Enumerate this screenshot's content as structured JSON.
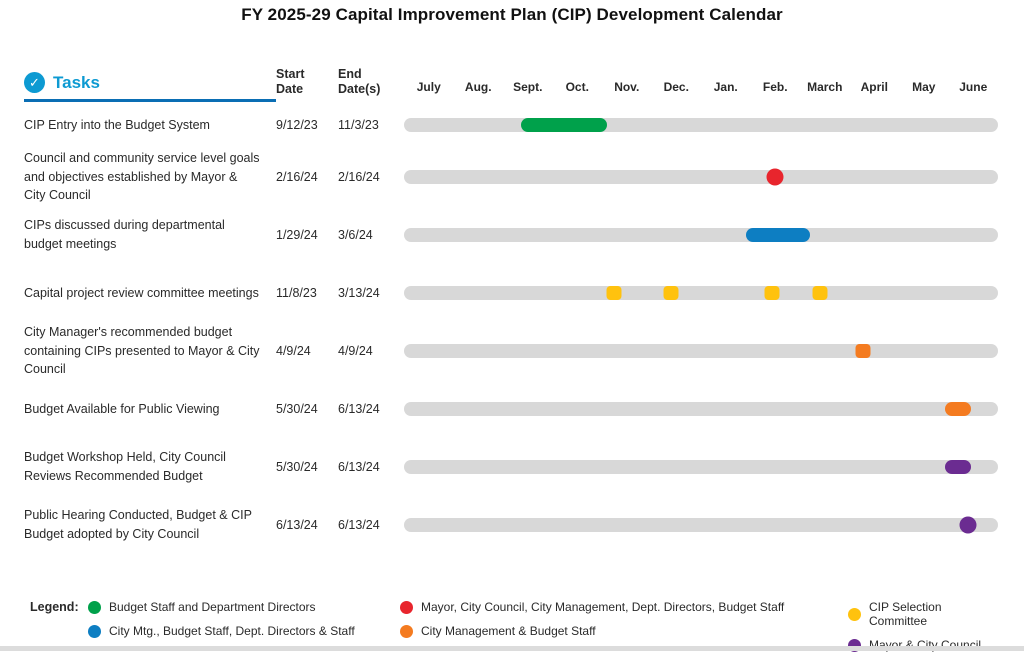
{
  "icons": {
    "tasks_check": "✓"
  },
  "header": {
    "tasks_label": "Tasks",
    "start_date_label": "Start\nDate",
    "end_date_label": "End\nDate(s)"
  },
  "colors": {
    "green": "#00a14b",
    "blue": "#0d7ec2",
    "red": "#e8252d",
    "yellow": "#ffc20e",
    "orange": "#f47b20",
    "purple": "#6b2c91",
    "track": "#d8d8d8",
    "tasks_accent": "#0d9ad2",
    "underline": "#0a6eb4"
  },
  "chart_data": {
    "type": "bar",
    "subtype": "gantt",
    "title": "FY 2025-29 Capital Improvement Plan (CIP) Development Calendar",
    "months": [
      "July",
      "Aug.",
      "Sept.",
      "Oct.",
      "Nov.",
      "Dec.",
      "Jan.",
      "Feb.",
      "March",
      "April",
      "May",
      "June"
    ],
    "tasks": [
      {
        "label": "CIP Entry into the Budget System",
        "start_date": "9/12/23",
        "end_date": "11/3/23",
        "color": "green",
        "marker": "bar"
      },
      {
        "label": "Council and community service level goals and objectives established by Mayor & City Council",
        "start_date": "2/16/24",
        "end_date": "2/16/24",
        "color": "red",
        "marker": "dot"
      },
      {
        "label": "CIPs discussed during departmental budget meetings",
        "start_date": "1/29/24",
        "end_date": "3/6/24",
        "color": "blue",
        "marker": "bar"
      },
      {
        "label": "Capital project review committee meetings",
        "start_date": "11/8/23",
        "end_date": "3/13/24",
        "color": "yellow",
        "marker": "squares",
        "marker_dates": [
          "11/8/23",
          "12/13/23",
          "2/14/24",
          "3/13/24"
        ]
      },
      {
        "label": "City Manager's recommended budget containing CIPs presented to Mayor & City Council",
        "start_date": "4/9/24",
        "end_date": "4/9/24",
        "color": "orange",
        "marker": "square"
      },
      {
        "label": "Budget Available for Public Viewing",
        "start_date": "5/30/24",
        "end_date": "6/13/24",
        "color": "orange",
        "marker": "bar"
      },
      {
        "label": "Budget Workshop Held, City Council Reviews Recommended Budget",
        "start_date": "5/30/24",
        "end_date": "6/13/24",
        "color": "purple",
        "marker": "bar"
      },
      {
        "label": "Public Hearing Conducted, Budget & CIP Budget adopted by City Council",
        "start_date": "6/13/24",
        "end_date": "6/13/24",
        "color": "purple",
        "marker": "dot"
      }
    ]
  },
  "legend": {
    "label": "Legend:",
    "columns": [
      [
        {
          "color": "green",
          "text": "Budget Staff and Department Directors"
        },
        {
          "color": "blue",
          "text": "City Mtg., Budget Staff, Dept. Directors & Staff"
        }
      ],
      [
        {
          "color": "red",
          "text": "Mayor, City Council, City Management, Dept. Directors, Budget Staff"
        },
        {
          "color": "orange",
          "text": "City Management & Budget Staff"
        }
      ],
      [
        {
          "color": "yellow",
          "text": "CIP Selection Committee"
        },
        {
          "color": "purple",
          "text": "Mayor & City Council"
        }
      ]
    ]
  }
}
